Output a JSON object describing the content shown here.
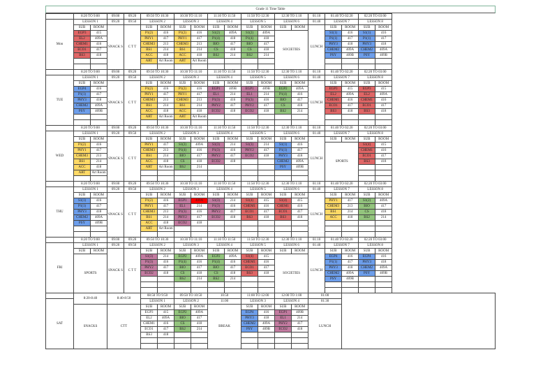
{
  "title": "Grade 11 Time Table",
  "labels": {
    "sub": "SUB",
    "room": "ROOM",
    "snacks": "SNACK S",
    "ctt": "C T T",
    "lunch": "LUNCH",
    "societies": "SOCIETIES",
    "sports": "SPORTS",
    "break": "BREAK",
    "snacks_sat": "SNACKS",
    "ctt_sat": "CTT"
  },
  "colors": {
    "red": "#e06666",
    "yellow": "#ffd966",
    "green": "#93c47d",
    "blue": "#6d9eeb",
    "purple": "#c27ba0",
    "highlight": "#ff0000"
  },
  "weekday_times": {
    "l1": "8:20 TO 9:00",
    "snack": [
      "09:00",
      "09:20"
    ],
    "ctt": [
      "09:20",
      "09:50"
    ],
    "l2": "09:50 TO 10:30",
    "l3": "10:30 TO 11:10",
    "l4": "11:10 TO 11:50",
    "l5": "11:50 TO 12:30",
    "l6": "12:30 TO 1:10",
    "lunch": [
      "01:10",
      "01:40"
    ],
    "l7": "01:40 TO 02:20",
    "l8": "02:20 TO 03:00"
  },
  "lessons": [
    "LESSON 1",
    "LESSON 2",
    "LESSON 3",
    "LESSON 4",
    "LESSON 5",
    "LESSON 6",
    "LESSON 7",
    "LESSON 8"
  ],
  "days": [
    {
      "name": "Mon",
      "l1": {
        "color": "red",
        "rows": [
          [
            "EGP3",
            "415"
          ],
          [
            "EL2",
            "409A"
          ],
          [
            "CHEM1",
            "416"
          ],
          [
            "ECO1",
            "417"
          ],
          [
            "BS3",
            "418"
          ]
        ]
      },
      "l2": {
        "color": "yellow",
        "rows": [
          [
            "P1(2)",
            "416"
          ],
          [
            "PHY1",
            "417"
          ],
          [
            "CHEM3",
            "213"
          ],
          [
            "BS1",
            "214"
          ],
          [
            "ACC",
            "418"
          ],
          [
            "ART",
            "Art Room"
          ]
        ]
      },
      "l3": {
        "color": "yellow",
        "rows": [
          [
            "P1(2)",
            "416"
          ],
          [
            "PHY1",
            "417"
          ],
          [
            "CHEM3",
            "213"
          ],
          [
            "BS1",
            "214"
          ],
          [
            "ACC",
            "418"
          ],
          [
            "ART",
            "Art Room"
          ]
        ]
      },
      "l4": {
        "color": "green",
        "rows": [
          [
            "S1(2)",
            "409A"
          ],
          [
            "P1(4)",
            "418"
          ],
          [
            "BIO",
            "417"
          ],
          [
            "CS",
            "418"
          ],
          [
            "BS2",
            "214"
          ]
        ]
      },
      "l5": {
        "color": "green",
        "rows": [
          [
            "S1(2)",
            "409A"
          ],
          [
            "P1(4)",
            "418"
          ],
          [
            "BIO",
            "417"
          ],
          [
            "CS",
            "418"
          ],
          [
            "BS2",
            "214"
          ]
        ]
      },
      "l6": {
        "text": "SOCIETIES"
      },
      "l7": {
        "color": "blue",
        "rows": [
          [
            "S1(1)",
            "416"
          ],
          [
            "P1(1)",
            "417"
          ],
          [
            "PHY3",
            "418"
          ],
          [
            "CHEM2",
            "409A"
          ],
          [
            "PSY",
            "409B"
          ]
        ]
      },
      "l8": {
        "color": "blue",
        "rows": [
          [
            "S1(1)",
            "416"
          ],
          [
            "P1(1)",
            "417"
          ],
          [
            "PHY3",
            "418"
          ],
          [
            "CHEM2",
            "409A"
          ],
          [
            "PSY",
            "409B"
          ]
        ]
      }
    },
    {
      "name": "TUE",
      "l1": {
        "color": "blue",
        "rows": [
          [
            "EGP4",
            "416"
          ],
          [
            "P1(1)",
            "417"
          ],
          [
            "PHY3",
            "418"
          ],
          [
            "CHEM2",
            "409A"
          ],
          [
            "PSY",
            "409B"
          ]
        ]
      },
      "l2": {
        "color": "yellow",
        "rows": [
          [
            "P1(2)",
            "416"
          ],
          [
            "PHY1",
            "417"
          ],
          [
            "CHEM3",
            "213"
          ],
          [
            "BS1",
            "214"
          ],
          [
            "ACC",
            "418"
          ],
          [
            "ART",
            "Art Room"
          ]
        ]
      },
      "l3": {
        "color": "yellow",
        "rows": [
          [
            "P1(2)",
            "416"
          ],
          [
            "PHY1",
            "417"
          ],
          [
            "CHEM3",
            "213"
          ],
          [
            "BS1",
            "214"
          ],
          [
            "ACC",
            "418"
          ],
          [
            "ART",
            "Art Room"
          ]
        ]
      },
      "l4": {
        "color": "purple",
        "rows": [
          [
            "EGP1",
            "409B"
          ],
          [
            "EL1",
            "214"
          ],
          [
            "P1(3)",
            "416"
          ],
          [
            "PHY2",
            "417"
          ],
          [
            "ECO2",
            "418"
          ]
        ]
      },
      "l5": {
        "color": "purple",
        "rows": [
          [
            "EGP1",
            "409B"
          ],
          [
            "EL1",
            "214"
          ],
          [
            "P1(3)",
            "416"
          ],
          [
            "PHY2",
            "417"
          ],
          [
            "ECO2",
            "418"
          ]
        ]
      },
      "l6": {
        "color": "green",
        "rows": [
          [
            "EGP2",
            "409A"
          ],
          [
            "P1(4)",
            "416"
          ],
          [
            "BIO",
            "417"
          ],
          [
            "CS",
            "418"
          ],
          [
            "BS2",
            "214"
          ]
        ]
      },
      "l7": {
        "color": "red",
        "rows": [
          [
            "EGP3",
            "415"
          ],
          [
            "EL2",
            "409A"
          ],
          [
            "CHEM1",
            "416"
          ],
          [
            "ECO1",
            "417"
          ],
          [
            "BS3",
            "418"
          ]
        ]
      },
      "l8": {
        "color": "red",
        "rows": [
          [
            "EGP3",
            "415"
          ],
          [
            "EL2",
            "409A"
          ],
          [
            "CHEM1",
            "416"
          ],
          [
            "ECO1",
            "417"
          ],
          [
            "BS3",
            "418"
          ]
        ]
      }
    },
    {
      "name": "WED",
      "l1": {
        "color": "yellow",
        "rows": [
          [
            "P1(2)",
            "416"
          ],
          [
            "PHY1",
            "417"
          ],
          [
            "CHEM3",
            "213"
          ],
          [
            "BS1",
            "214"
          ],
          [
            "ACC",
            "418"
          ],
          [
            "ART",
            "Art Room"
          ]
        ]
      },
      "l2": {
        "color": "yellow",
        "rows": [
          [
            "PHY1",
            "417"
          ],
          [
            "CHEM3",
            "213"
          ],
          [
            "BS1",
            "214"
          ],
          [
            "ACC",
            "418"
          ],
          [
            "ART",
            "Art Room"
          ]
        ]
      },
      "l3": {
        "color": "green",
        "rows": [
          [
            "S1(2)",
            "409A"
          ],
          [
            "P1(4)",
            "416"
          ],
          [
            "BIO",
            "417"
          ],
          [
            "CS",
            "418"
          ],
          [
            "BS2",
            "214"
          ]
        ]
      },
      "l4": {
        "color": "purple",
        "rows": [
          [
            "S1(3)",
            "214"
          ],
          [
            "P1(3)",
            "416"
          ],
          [
            "PHY2",
            "417"
          ],
          [
            "ECO2",
            "418"
          ]
        ]
      },
      "l5": {
        "color": "purple",
        "rows": [
          [
            "S1(3)",
            "214"
          ],
          [
            "PHY2",
            "417"
          ],
          [
            "ECO2",
            "418"
          ]
        ]
      },
      "l6": {
        "color": "blue",
        "rows": [
          [
            "S1(1)",
            "416"
          ],
          [
            "P1(1)",
            "417"
          ],
          [
            "PHY3",
            "418"
          ],
          [
            "CHEM2",
            "409A"
          ],
          [
            "PSY",
            "409B"
          ]
        ]
      },
      "l7": {
        "text": "SPORTS"
      },
      "l8": {
        "color": "red",
        "rows": [
          [
            "S1(4)",
            "415"
          ],
          [
            "CHEM1",
            "416"
          ],
          [
            "ECO1",
            "417"
          ],
          [
            "BS3",
            "418"
          ]
        ]
      }
    },
    {
      "name": "THU",
      "l1": {
        "color": "blue",
        "rows": [
          [
            "S1(1)",
            "416"
          ],
          [
            "P1(1)",
            "417"
          ],
          [
            "PHY3",
            "418"
          ],
          [
            "CHEM2",
            "409A"
          ],
          [
            "PSY",
            "409B"
          ]
        ]
      },
      "l2": {
        "color": "yellow",
        "rows": [
          [
            "P1(2)",
            "416"
          ],
          [
            "PHY1",
            "417"
          ],
          [
            "CHEM3",
            "213"
          ],
          [
            "BS1",
            "214"
          ],
          [
            "ACC",
            "418"
          ],
          [
            "ART",
            "Art Room"
          ]
        ]
      },
      "l3": {
        "color": "purple",
        "rows": [
          [
            "EGP1",
            "409A"
          ],
          [
            "EL1",
            "214"
          ],
          [
            "P1(3)",
            "416"
          ],
          [
            "PHY2",
            "417"
          ],
          [
            "ECO2",
            "418"
          ]
        ],
        "highlight": [
          0,
          1
        ]
      },
      "l4": {
        "color": "purple",
        "rows": [
          [
            "S1(3)",
            "214"
          ],
          [
            "P1(3)",
            "416"
          ],
          [
            "PHY2",
            "417"
          ],
          [
            "ECO2",
            "418"
          ]
        ]
      },
      "l5": {
        "color": "red",
        "rows": [
          [
            "S1(4)",
            "415"
          ],
          [
            "CHEM1",
            "416"
          ],
          [
            "ECO1",
            "417"
          ],
          [
            "BS3",
            "418"
          ]
        ]
      },
      "l6": {
        "color": "red",
        "rows": [
          [
            "S1(4)",
            "415"
          ],
          [
            "CHEM1",
            "416"
          ],
          [
            "ECO1",
            "417"
          ],
          [
            "BS3",
            "418"
          ]
        ]
      },
      "l7": {
        "color": "yellow",
        "rows": [
          [
            "PHY1",
            "417"
          ],
          [
            "CHEM3",
            "213"
          ],
          [
            "BS1",
            "214"
          ],
          [
            "ACC",
            "418"
          ]
        ]
      },
      "l8": {
        "color": "green",
        "rows": [
          [
            "S1(2)",
            "409A"
          ],
          [
            "BIO",
            "417"
          ],
          [
            "CS",
            "418"
          ],
          [
            "BS2",
            "214"
          ]
        ]
      }
    },
    {
      "name": "FRI",
      "l1": {
        "text": "SPORTS"
      },
      "l2": {
        "color": "purple",
        "rows": [
          [
            "S1(3)",
            "214"
          ],
          [
            "P1(3)",
            "416"
          ],
          [
            "PHY2",
            "417"
          ],
          [
            "ECO2",
            "418"
          ]
        ]
      },
      "l3": {
        "color": "green",
        "rows": [
          [
            "EGP2",
            "409A"
          ],
          [
            "P1(4)",
            "416"
          ],
          [
            "BIO",
            "417"
          ],
          [
            "CS",
            "418"
          ],
          [
            "BS2",
            "214"
          ]
        ]
      },
      "l4": {
        "color": "green",
        "rows": [
          [
            "EGP2",
            "409A"
          ],
          [
            "P1(4)",
            "416"
          ],
          [
            "BIO",
            "417"
          ],
          [
            "CS",
            "418"
          ],
          [
            "BS2",
            "214"
          ]
        ]
      },
      "l5": {
        "color": "red",
        "rows": [
          [
            "S1(4)",
            "415"
          ],
          [
            "CHEM1",
            "416"
          ],
          [
            "ECO1",
            "417"
          ],
          [
            "BS3",
            "418"
          ]
        ]
      },
      "l6": {
        "text": "SOCIETIES"
      },
      "l7": {
        "color": "blue",
        "rows": [
          [
            "EGP4",
            "416"
          ],
          [
            "P1(1)",
            "417"
          ],
          [
            "PHY3",
            "418"
          ],
          [
            "CHEM2",
            "409A"
          ],
          [
            "PSY",
            "409B"
          ]
        ]
      },
      "l8": {
        "color": "blue",
        "rows": [
          [
            "EGP4",
            "416"
          ],
          [
            "PHY3",
            "418"
          ],
          [
            "CHEM2",
            "409A"
          ],
          [
            "PSY",
            "409B"
          ]
        ]
      }
    }
  ],
  "saturday": {
    "name": "SAT",
    "times": {
      "snacks": "8:20-8:40",
      "ctt": "8:40-8:50",
      "l1": "08:50 TO 9:50",
      "l2": "09:50 TO 10:50",
      "break": [
        "10:50",
        "11:00"
      ],
      "l3": "11:00 TO 12:00",
      "l4": "12:00 TO 1:00",
      "lunch": [
        "01:00",
        "01:30"
      ]
    },
    "lessons": [
      "LESSON 1",
      "LESSON 2",
      "LESSON 3",
      "LESSON 4"
    ],
    "l1": {
      "color": "none",
      "rows": [
        [
          "EGP3",
          "415"
        ],
        [
          "EL2",
          "409A"
        ],
        [
          "CHEM1",
          "416"
        ],
        [
          "ECO1",
          "417"
        ],
        [
          "BS3",
          "418"
        ]
      ]
    },
    "l2": {
      "color": "green",
      "rows": [
        [
          "EGP2",
          "409A"
        ],
        [
          "BIO",
          "417"
        ],
        [
          "CS",
          "418"
        ],
        [
          "BS2",
          "214"
        ]
      ]
    },
    "l3": {
      "color": "blue",
      "rows": [
        [
          "EGP4",
          "416"
        ],
        [
          "PHY3",
          "418"
        ],
        [
          "CHEM2",
          "409A"
        ],
        [
          "PSY",
          "409B"
        ]
      ]
    },
    "l4": {
      "color": "purple",
      "rows": [
        [
          "EGP1",
          "409B"
        ],
        [
          "EL1",
          "214"
        ],
        [
          "PHY2",
          "417"
        ],
        [
          "ECO2",
          "418"
        ]
      ]
    }
  }
}
